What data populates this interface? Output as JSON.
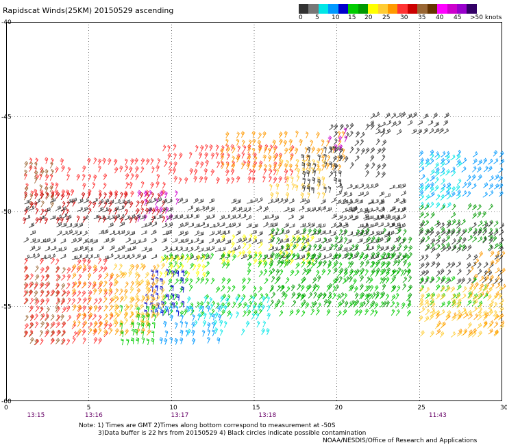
{
  "title": "Rapidscat Winds(25KM) 20150529 ascending",
  "colorbar": {
    "colors": [
      "#333333",
      "#777777",
      "#00e6e6",
      "#0099ff",
      "#0000cc",
      "#00cc00",
      "#009900",
      "#ffff00",
      "#ffcc33",
      "#ff9900",
      "#ff3333",
      "#cc0000",
      "#996633",
      "#663300",
      "#ff00ff",
      "#cc00cc",
      "#9900cc",
      "#330066"
    ],
    "labels": [
      "0",
      "5",
      "10",
      "15",
      "20",
      "25",
      "30",
      "35",
      "40",
      "45"
    ],
    "last_label": ">50 knots"
  },
  "axes": {
    "x_ticks": [
      "0",
      "5",
      "10",
      "15",
      "20",
      "25",
      "30"
    ],
    "y_ticks": [
      "-40",
      "-45",
      "-50",
      "-55",
      "-60"
    ],
    "xlim": [
      0,
      30
    ],
    "ylim": [
      -60,
      -40
    ],
    "time_labels": [
      {
        "x": 1.8,
        "text": "13:15"
      },
      {
        "x": 5.3,
        "text": "13:16"
      },
      {
        "x": 10.5,
        "text": "13:17"
      },
      {
        "x": 15.8,
        "text": "13:18"
      },
      {
        "x": 26.1,
        "text": "11:43"
      }
    ],
    "time_color": "#660066"
  },
  "notes": {
    "line1": "Note: 1) Times are GMT 2)Times along bottom correspond to measurement at -50S",
    "line2": "3)Data buffer is 22 hrs from 20150529 4) Black circles indicate possible contamination",
    "line3": "NOAA/NESDIS/Office of Research and Applications"
  },
  "wind_regions": [
    {
      "x0": 1.1,
      "x1": 9.5,
      "y0": -49.2,
      "y1": -47.2,
      "dir": 60,
      "color": "#ff3333"
    },
    {
      "x0": 9.5,
      "x1": 17.5,
      "y0": -48.5,
      "y1": -46.8,
      "dir": 60,
      "color": "#ff3333"
    },
    {
      "x0": 13,
      "x1": 20.5,
      "y0": -47.8,
      "y1": -45.8,
      "dir": 60,
      "color": "#ff9900"
    },
    {
      "x0": 1.1,
      "x1": 3,
      "y0": -49.8,
      "y1": -47.4,
      "dir": 60,
      "color": "#996633"
    },
    {
      "x0": 1.1,
      "x1": 9.5,
      "y0": -50.6,
      "y1": -49.2,
      "dir": 60,
      "color": "#cc0000"
    },
    {
      "x0": 8,
      "x1": 10.5,
      "y0": -50.5,
      "y1": -49.2,
      "dir": 60,
      "color": "#cc00cc"
    },
    {
      "x0": 16,
      "x1": 19.5,
      "y0": -49.3,
      "y1": -47.6,
      "dir": 70,
      "color": "#ffcc33"
    },
    {
      "x0": 18,
      "x1": 20.5,
      "y0": -49,
      "y1": -46.5,
      "dir": 80,
      "color": "#333333"
    },
    {
      "x0": 19.5,
      "x1": 23,
      "y0": -48.2,
      "y1": -45.3,
      "dir": 45,
      "color": "#333333"
    },
    {
      "x0": 22,
      "x1": 26.5,
      "y0": -45.9,
      "y1": -44.9,
      "dir": 30,
      "color": "#333333"
    },
    {
      "x0": 19.5,
      "x1": 20.5,
      "y0": -46.8,
      "y1": -45.8,
      "dir": 60,
      "color": "#cc00cc"
    },
    {
      "x0": 1.1,
      "x1": 24,
      "y0": -52.5,
      "y1": -49.5,
      "dir": 20,
      "color": "#333333"
    },
    {
      "x0": 20,
      "x1": 24,
      "y0": -51.3,
      "y1": -48.5,
      "dir": 20,
      "color": "#333333"
    },
    {
      "x0": 13,
      "x1": 18.5,
      "y0": -52.8,
      "y1": -51.3,
      "dir": 50,
      "color": "#ffff00"
    },
    {
      "x0": 9.5,
      "x1": 24.5,
      "y0": -55.5,
      "y1": -52.3,
      "dir": 50,
      "color": "#00cc00"
    },
    {
      "x0": 16,
      "x1": 24.5,
      "y0": -55,
      "y1": -51,
      "dir": 50,
      "color": "#009900"
    },
    {
      "x0": 8.5,
      "x1": 11,
      "y0": -55.5,
      "y1": -53,
      "dir": 80,
      "color": "#0000cc"
    },
    {
      "x0": 9,
      "x1": 13,
      "y0": -57,
      "y1": -55,
      "dir": 70,
      "color": "#0099ff"
    },
    {
      "x0": 11,
      "x1": 16,
      "y0": -56.5,
      "y1": -54.8,
      "dir": 60,
      "color": "#00e6e6"
    },
    {
      "x0": 1.1,
      "x1": 3.5,
      "y0": -57,
      "y1": -52.8,
      "dir": 50,
      "color": "#996633"
    },
    {
      "x0": 1.1,
      "x1": 6.5,
      "y0": -57,
      "y1": -52.5,
      "dir": 50,
      "color": "#ff3333"
    },
    {
      "x0": 4,
      "x1": 9,
      "y0": -56.5,
      "y1": -52.8,
      "dir": 50,
      "color": "#ff9900"
    },
    {
      "x0": 6.5,
      "x1": 9.5,
      "y0": -56,
      "y1": -53,
      "dir": 50,
      "color": "#ffcc33"
    },
    {
      "x0": 7,
      "x1": 9,
      "y0": -57,
      "y1": -55,
      "dir": 80,
      "color": "#00cc00"
    },
    {
      "x0": 9,
      "x1": 12,
      "y0": -53.5,
      "y1": -52.3,
      "dir": 60,
      "color": "#ffff00"
    },
    {
      "x0": 25,
      "x1": 30,
      "y0": -49.2,
      "y1": -47,
      "dir": 40,
      "color": "#0099ff"
    },
    {
      "x0": 25,
      "x1": 27.5,
      "y0": -49.8,
      "y1": -47.2,
      "dir": 40,
      "color": "#00e6e6"
    },
    {
      "x0": 25,
      "x1": 30,
      "y0": -52,
      "y1": -49.5,
      "dir": 40,
      "color": "#009900"
    },
    {
      "x0": 25,
      "x1": 30,
      "y0": -53.8,
      "y1": -50.5,
      "dir": 40,
      "color": "#333333"
    },
    {
      "x0": 28,
      "x1": 30,
      "y0": -54.5,
      "y1": -52.2,
      "dir": 40,
      "color": "#ff9900"
    },
    {
      "x0": 25,
      "x1": 29,
      "y0": -55,
      "y1": -53.5,
      "dir": 40,
      "color": "#00cc00"
    },
    {
      "x0": 25,
      "x1": 30,
      "y0": -55.5,
      "y1": -54,
      "dir": 40,
      "color": "#ffcc33"
    },
    {
      "x0": 25,
      "x1": 30,
      "y0": -56.6,
      "y1": -54.8,
      "dir": 40,
      "color": "#ffcc33"
    },
    {
      "x0": 26,
      "x1": 30,
      "y0": -56.5,
      "y1": -55.5,
      "dir": 40,
      "color": "#ff9900"
    }
  ]
}
